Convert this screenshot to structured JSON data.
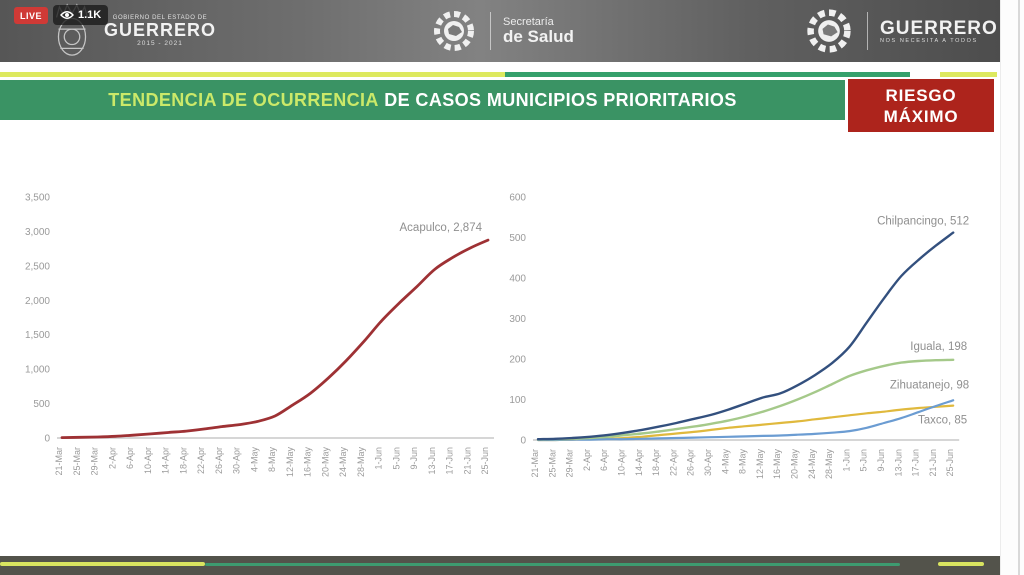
{
  "player": {
    "live_label": "LIVE",
    "viewer_count": "1.1K"
  },
  "header": {
    "left_logo": {
      "line1": "GOBIERNO DEL ESTADO DE",
      "line2": "GUERRERO",
      "line3": "2015 - 2021"
    },
    "center_logo": {
      "line1": "Secretaría",
      "line2": "de Salud"
    },
    "right_logo": {
      "line1": "GUERRERO",
      "line2": "NOS NECESITA A TODOS"
    }
  },
  "banner": {
    "title_highlight": "TENDENCIA DE OCURRENCIA",
    "title_mid": " DE CASOS ",
    "title_rest": "MUNICIPIOS PRIORITARIOS"
  },
  "risk_badge": {
    "line1": "RIESGO",
    "line2": "MÁXIMO",
    "color": "#ad241c"
  },
  "colors": {
    "banner_green": "#3a9364",
    "stripe_yellow": "#dde95f",
    "stripe_green": "#35a06b",
    "axis_text": "#9a9a9a",
    "label_text": "#8f8f8f",
    "baseline": "#c9c9c9"
  },
  "chart_data": [
    {
      "type": "line",
      "title": "",
      "xlabel": "",
      "ylabel": "",
      "grid": false,
      "legend_position": "end-of-line",
      "ylim": [
        0,
        3500
      ],
      "ytick_values": [
        0,
        500,
        1000,
        1500,
        2000,
        2500,
        3000,
        3500
      ],
      "ytick_labels": [
        "0",
        "500",
        "1,000",
        "1,500",
        "2,000",
        "2,500",
        "3,000",
        "3,500"
      ],
      "categories": [
        "21-Mar",
        "25-Mar",
        "29-Mar",
        "2-Apr",
        "6-Apr",
        "10-Apr",
        "14-Apr",
        "18-Apr",
        "22-Apr",
        "26-Apr",
        "30-Apr",
        "4-May",
        "8-May",
        "12-May",
        "16-May",
        "20-May",
        "24-May",
        "28-May",
        "1-Jun",
        "5-Jun",
        "9-Jun",
        "13-Jun",
        "17-Jun",
        "21-Jun",
        "25-Jun"
      ],
      "series": [
        {
          "name": "Acapulco",
          "end_label": "Acapulco, 2,874",
          "final_value": 2874,
          "color": "#9e3134",
          "stroke_width": 2.8,
          "label_dx": -6,
          "label_dy": -9,
          "values": [
            5,
            10,
            15,
            25,
            40,
            60,
            80,
            100,
            130,
            165,
            195,
            240,
            320,
            480,
            650,
            870,
            1120,
            1400,
            1700,
            1960,
            2200,
            2450,
            2620,
            2760,
            2874
          ]
        }
      ]
    },
    {
      "type": "line",
      "title": "",
      "xlabel": "",
      "ylabel": "",
      "grid": false,
      "legend_position": "end-of-line",
      "ylim": [
        0,
        600
      ],
      "ytick_values": [
        0,
        100,
        200,
        300,
        400,
        500,
        600
      ],
      "ytick_labels": [
        "0",
        "100",
        "200",
        "300",
        "400",
        "500",
        "600"
      ],
      "categories": [
        "21-Mar",
        "25-Mar",
        "29-Mar",
        "2-Apr",
        "6-Apr",
        "10-Apr",
        "14-Apr",
        "18-Apr",
        "22-Apr",
        "26-Apr",
        "30-Apr",
        "4-May",
        "8-May",
        "12-May",
        "16-May",
        "20-May",
        "24-May",
        "28-May",
        "1-Jun",
        "5-Jun",
        "9-Jun",
        "13-Jun",
        "17-Jun",
        "21-Jun",
        "25-Jun"
      ],
      "series": [
        {
          "name": "Chilpancingo",
          "end_label": "Chilpancingo, 512",
          "final_value": 512,
          "color": "#33507e",
          "stroke_width": 2.4,
          "label_dx": 16,
          "label_dy": -8,
          "values": [
            2,
            3,
            5,
            8,
            12,
            18,
            25,
            33,
            42,
            52,
            62,
            75,
            90,
            105,
            115,
            135,
            160,
            190,
            230,
            290,
            350,
            405,
            445,
            480,
            512
          ]
        },
        {
          "name": "Iguala",
          "end_label": "Iguala, 198",
          "final_value": 198,
          "color": "#a5c98a",
          "stroke_width": 2.4,
          "label_dx": 14,
          "label_dy": -10,
          "values": [
            1,
            2,
            3,
            5,
            8,
            12,
            16,
            21,
            27,
            33,
            40,
            48,
            58,
            70,
            84,
            100,
            118,
            138,
            158,
            172,
            183,
            191,
            195,
            197,
            198
          ]
        },
        {
          "name": "Zihuatanejo",
          "end_label": "Zihuatanejo, 98",
          "final_value": 98,
          "color": "#6b9cd2",
          "stroke_width": 2.2,
          "label_dx": 16,
          "label_dy": -12,
          "values": [
            0,
            0,
            1,
            1,
            2,
            2,
            3,
            4,
            5,
            6,
            7,
            8,
            9,
            10,
            11,
            13,
            15,
            18,
            22,
            30,
            42,
            54,
            69,
            84,
            98
          ]
        },
        {
          "name": "Taxco",
          "end_label": "Taxco, 85",
          "final_value": 85,
          "color": "#e0b93d",
          "stroke_width": 2.2,
          "label_dx": 14,
          "label_dy": 18,
          "values": [
            0,
            0,
            1,
            2,
            3,
            5,
            8,
            12,
            16,
            20,
            25,
            30,
            34,
            38,
            42,
            46,
            51,
            56,
            61,
            66,
            70,
            75,
            79,
            82,
            85
          ]
        }
      ]
    }
  ]
}
